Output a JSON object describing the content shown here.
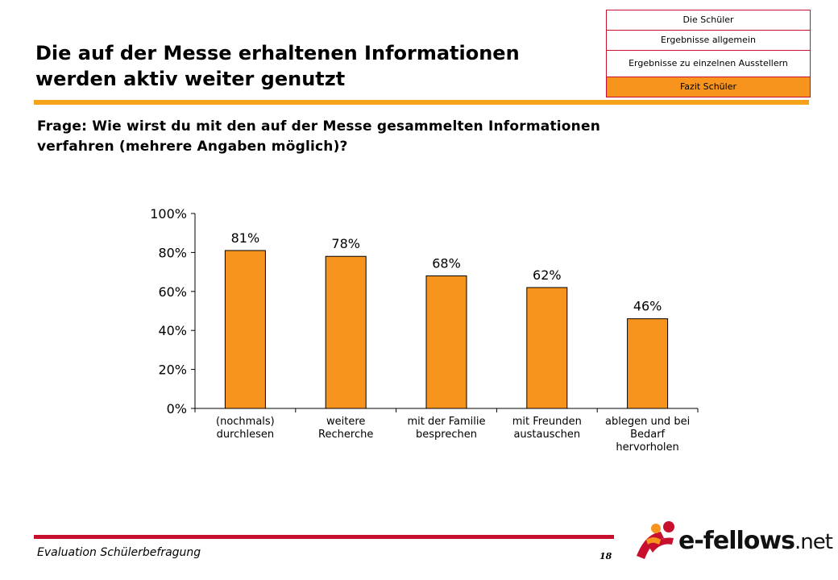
{
  "header": {
    "title_line1": "Die auf der Messe erhaltenen Informationen",
    "title_line2": "werden aktiv weiter genutzt"
  },
  "nav": {
    "items": [
      {
        "label": "Die Schüler",
        "active": false
      },
      {
        "label": "Ergebnisse allgemein",
        "active": false
      },
      {
        "label": "Ergebnisse zu einzelnen Ausstellern",
        "active": false
      },
      {
        "label": "Fazit Schüler",
        "active": true
      }
    ]
  },
  "question": {
    "line1": "Frage: Wie wirst du mit den auf der Messe gesammelten Informationen",
    "line2": "verfahren (mehrere Angaben möglich)?"
  },
  "chart_data": {
    "type": "bar",
    "categories": [
      [
        "(nochmals)",
        "durchlesen"
      ],
      [
        "weitere",
        "Recherche"
      ],
      [
        "mit der Familie",
        "besprechen"
      ],
      [
        "mit Freunden",
        "austauschen"
      ],
      [
        "ablegen und bei",
        "Bedarf",
        "hervorholen"
      ]
    ],
    "values": [
      81,
      78,
      68,
      62,
      46
    ],
    "value_labels": [
      "81%",
      "78%",
      "68%",
      "62%",
      "46%"
    ],
    "yticks": [
      0,
      20,
      40,
      60,
      80,
      100
    ],
    "ytick_labels": [
      "0%",
      "20%",
      "40%",
      "60%",
      "80%",
      "100%"
    ],
    "ylim": [
      0,
      100
    ],
    "grid": false,
    "bar_color": "#f7941d"
  },
  "footer": {
    "text": "Evaluation Schülerbefragung",
    "page": "18"
  },
  "logo": {
    "name": "e-fellows",
    "tld": ".net"
  }
}
